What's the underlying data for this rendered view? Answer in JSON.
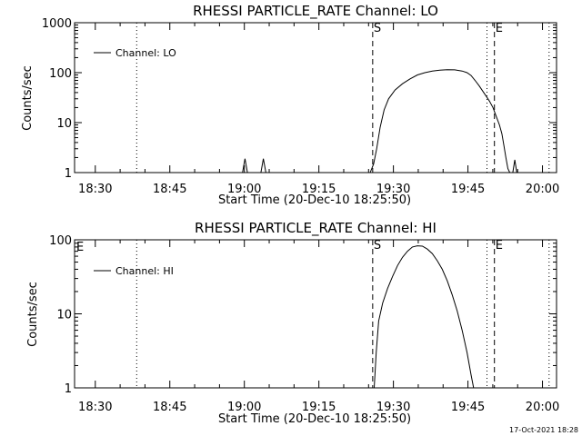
{
  "colors": {
    "background": "#ffffff",
    "foreground": "#000000"
  },
  "chart_data": [
    {
      "type": "line",
      "title": "RHESSI PARTICLE_RATE Channel: LO",
      "xlabel": "Start Time (20-Dec-10 18:25:50)",
      "ylabel": "Counts/sec",
      "legend": {
        "label": "Channel: LO",
        "placement": "top-left"
      },
      "x_unit": "minutes since 18:25:50",
      "xlim": [
        0,
        97
      ],
      "ylim": [
        1,
        1000
      ],
      "yscale": "log",
      "x_ticks": [
        {
          "x": 4.17,
          "label": "18:30"
        },
        {
          "x": 19.17,
          "label": "18:45"
        },
        {
          "x": 34.17,
          "label": "19:00"
        },
        {
          "x": 49.17,
          "label": "19:15"
        },
        {
          "x": 64.17,
          "label": "19:30"
        },
        {
          "x": 79.17,
          "label": "19:45"
        },
        {
          "x": 94.17,
          "label": "20:00"
        }
      ],
      "y_ticks": [
        {
          "y": 1,
          "label": "1"
        },
        {
          "y": 10,
          "label": "10"
        },
        {
          "y": 100,
          "label": "100"
        },
        {
          "y": 1000,
          "label": "1000"
        }
      ],
      "vlines": [
        {
          "x": 12.5,
          "style": "dotted",
          "label": ""
        },
        {
          "x": 60.0,
          "style": "dashed",
          "label": "S"
        },
        {
          "x": 83.0,
          "style": "dotted",
          "label": ""
        },
        {
          "x": 84.5,
          "style": "dashed",
          "label": "E"
        },
        {
          "x": 95.5,
          "style": "dotted",
          "label": ""
        }
      ],
      "segments": [
        [
          [
            33.8,
            1
          ],
          [
            34.3,
            1.9
          ],
          [
            34.8,
            1
          ]
        ],
        [
          [
            37.5,
            1
          ],
          [
            38.0,
            1.9
          ],
          [
            38.5,
            1
          ]
        ],
        [
          [
            59.5,
            1
          ],
          [
            60.2,
            1.5
          ],
          [
            60.8,
            3
          ],
          [
            61.5,
            8
          ],
          [
            62.3,
            18
          ],
          [
            63.2,
            30
          ],
          [
            64.5,
            45
          ],
          [
            66.0,
            60
          ],
          [
            67.5,
            75
          ],
          [
            69.0,
            90
          ],
          [
            70.5,
            100
          ],
          [
            72.0,
            108
          ],
          [
            73.5,
            112
          ],
          [
            75.0,
            115
          ],
          [
            76.5,
            114
          ],
          [
            78.0,
            108
          ],
          [
            79.0,
            100
          ],
          [
            79.8,
            88
          ],
          [
            80.6,
            70
          ],
          [
            81.4,
            55
          ],
          [
            82.2,
            42
          ],
          [
            83.0,
            32
          ],
          [
            83.5,
            27
          ],
          [
            84.2,
            20
          ],
          [
            84.9,
            13
          ],
          [
            85.5,
            9
          ],
          [
            86.0,
            6
          ],
          [
            86.4,
            3.5
          ],
          [
            86.8,
            2
          ],
          [
            87.2,
            1.2
          ],
          [
            87.6,
            1
          ]
        ],
        [
          [
            88.2,
            1
          ],
          [
            88.6,
            1.8
          ],
          [
            89.0,
            1
          ]
        ]
      ]
    },
    {
      "type": "line",
      "title": "RHESSI PARTICLE_RATE Channel: HI",
      "xlabel": "Start Time (20-Dec-10 18:25:50)",
      "ylabel": "Counts/sec",
      "legend": {
        "label": "Channel: HI",
        "placement": "top-left"
      },
      "x_unit": "minutes since 18:25:50",
      "xlim": [
        0,
        97
      ],
      "ylim": [
        1,
        100
      ],
      "yscale": "log",
      "x_ticks": [
        {
          "x": 4.17,
          "label": "18:30"
        },
        {
          "x": 19.17,
          "label": "18:45"
        },
        {
          "x": 34.17,
          "label": "19:00"
        },
        {
          "x": 49.17,
          "label": "19:15"
        },
        {
          "x": 64.17,
          "label": "19:30"
        },
        {
          "x": 79.17,
          "label": "19:45"
        },
        {
          "x": 94.17,
          "label": "20:00"
        }
      ],
      "y_ticks": [
        {
          "y": 1,
          "label": "1"
        },
        {
          "y": 10,
          "label": "10"
        },
        {
          "y": 100,
          "label": "100"
        }
      ],
      "vlines": [
        {
          "x": 12.5,
          "style": "dotted",
          "label": ""
        },
        {
          "x": 60.0,
          "style": "dashed",
          "label": "S"
        },
        {
          "x": 83.0,
          "style": "dotted",
          "label": ""
        },
        {
          "x": 84.5,
          "style": "dashed",
          "label": "E"
        },
        {
          "x": 95.5,
          "style": "dotted",
          "label": ""
        }
      ],
      "segments": [
        [
          [
            60.3,
            1
          ],
          [
            60.7,
            3
          ],
          [
            61.2,
            8
          ],
          [
            62.0,
            14
          ],
          [
            63.0,
            22
          ],
          [
            64.0,
            32
          ],
          [
            65.0,
            45
          ],
          [
            66.0,
            58
          ],
          [
            67.0,
            70
          ],
          [
            68.0,
            80
          ],
          [
            69.0,
            83
          ],
          [
            70.0,
            82
          ],
          [
            71.0,
            75
          ],
          [
            72.0,
            65
          ],
          [
            73.0,
            52
          ],
          [
            74.0,
            40
          ],
          [
            75.0,
            28
          ],
          [
            76.0,
            18
          ],
          [
            77.0,
            11
          ],
          [
            78.0,
            6
          ],
          [
            79.0,
            3
          ],
          [
            79.8,
            1.5
          ],
          [
            80.3,
            1
          ]
        ]
      ]
    }
  ],
  "header": {
    "left_mark": "E"
  },
  "footer": {
    "timestamp": "17-Oct-2021 18:28"
  }
}
